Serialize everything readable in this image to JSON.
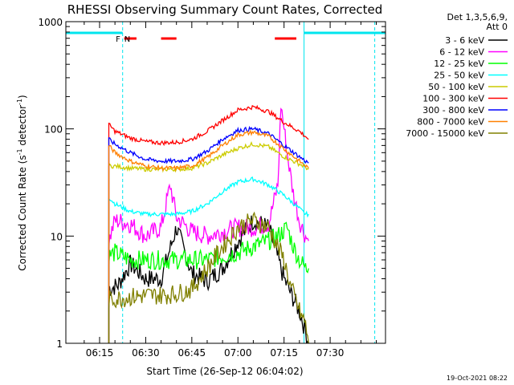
{
  "chart_data": {
    "type": "line",
    "title": "RHESSI Observing Summary Count Rates, Corrected",
    "xlabel": "Start Time (26-Sep-12 06:04:02)",
    "ylabel_main": "Corrected Count Rate (s",
    "ylabel_sup1": "-1",
    "ylabel_mid": " detector",
    "ylabel_sup2": "-1",
    "ylabel_end": ")",
    "x_ticks": [
      "06:15",
      "06:30",
      "06:45",
      "07:00",
      "07:15",
      "07:30"
    ],
    "x_tick_minutes": [
      15,
      30,
      45,
      60,
      75,
      90
    ],
    "xlim_minutes": [
      4.03,
      108
    ],
    "y_scale": "log",
    "ylim": [
      1,
      1000
    ],
    "y_ticks": [
      "1",
      "10",
      "100",
      "1000"
    ],
    "y_tick_values": [
      1,
      10,
      100,
      1000
    ],
    "legend_header": [
      "Det 1,3,5,6,9,",
      "Att 0"
    ],
    "legend_position": "top-right (outside plot)",
    "timestamp": "19-Oct-2021 08:22",
    "flags": {
      "eclipse_color": "#00e5ee",
      "eclipse_periods_minutes": [
        [
          4.03,
          22.5
        ],
        [
          81.5,
          108
        ]
      ],
      "boundary_minutes": [
        4.03,
        22.5,
        81.5,
        104.5
      ],
      "saa_periods_minutes": [
        [
          23.0,
          27.0
        ],
        [
          35.0,
          40.0
        ],
        [
          72.0,
          79.0
        ]
      ],
      "saa_color": "#ff0000",
      "flag_labels": [
        {
          "text": "F",
          "minute": 21.0,
          "color": "#ff0000"
        },
        {
          "text": "N",
          "minute": 24.0,
          "color": "#00e5ee"
        }
      ]
    },
    "series": [
      {
        "name": "3 - 6 keV",
        "color": "#000000",
        "t": [
          18,
          21,
          25,
          30,
          35,
          40,
          45,
          50,
          55,
          60,
          65,
          70,
          75,
          77,
          80,
          82,
          83
        ],
        "v": [
          3.2,
          3.5,
          5.5,
          4,
          4,
          12,
          4.5,
          3.8,
          5,
          9,
          14,
          12,
          4,
          3,
          2,
          1.3,
          1
        ]
      },
      {
        "name": "6 - 12 keV",
        "color": "#ff00ff",
        "t": [
          18,
          20,
          25,
          30,
          35,
          38,
          40,
          45,
          50,
          55,
          60,
          65,
          70,
          73,
          74,
          76,
          78,
          80,
          82,
          83
        ],
        "v": [
          9,
          14,
          13,
          10,
          12,
          30,
          15,
          11,
          10,
          11,
          12,
          12,
          13,
          30,
          170,
          60,
          25,
          14,
          10,
          9
        ]
      },
      {
        "name": "12 - 25 keV",
        "color": "#00ff00",
        "t": [
          18,
          20,
          25,
          30,
          35,
          40,
          45,
          50,
          55,
          60,
          65,
          70,
          73,
          76,
          78,
          80,
          82,
          83
        ],
        "v": [
          6.5,
          7,
          6,
          6,
          6,
          6,
          6,
          6,
          6.5,
          7,
          8,
          9,
          10,
          12,
          8,
          6,
          5,
          5
        ]
      },
      {
        "name": "25 - 50 keV",
        "color": "#00ffff",
        "t": [
          18,
          20,
          25,
          30,
          35,
          40,
          45,
          50,
          55,
          60,
          65,
          70,
          75,
          80,
          82,
          83
        ],
        "v": [
          23,
          20,
          17,
          16,
          16,
          16,
          17,
          20,
          26,
          32,
          34,
          30,
          24,
          18,
          16,
          16
        ]
      },
      {
        "name": "50 - 100 keV",
        "color": "#cccc00",
        "t": [
          18,
          20,
          25,
          30,
          35,
          40,
          45,
          50,
          55,
          60,
          65,
          70,
          75,
          80,
          82,
          83
        ],
        "v": [
          45,
          45,
          43,
          42,
          42,
          42,
          43,
          48,
          57,
          66,
          72,
          68,
          55,
          47,
          44,
          42
        ]
      },
      {
        "name": "100 - 300 keV",
        "color": "#ff0000",
        "t": [
          18,
          20,
          25,
          30,
          35,
          40,
          45,
          50,
          55,
          60,
          65,
          70,
          75,
          80,
          82,
          83
        ],
        "v": [
          110,
          95,
          82,
          76,
          74,
          75,
          80,
          95,
          120,
          150,
          160,
          145,
          115,
          95,
          85,
          80
        ]
      },
      {
        "name": "300 - 800 keV",
        "color": "#0000ff",
        "t": [
          18,
          20,
          25,
          30,
          35,
          40,
          45,
          50,
          55,
          60,
          65,
          70,
          75,
          80,
          82,
          83
        ],
        "v": [
          80,
          72,
          60,
          52,
          50,
          50,
          52,
          62,
          80,
          97,
          100,
          90,
          70,
          55,
          50,
          48
        ]
      },
      {
        "name": "800 - 7000 keV",
        "color": "#ff8000",
        "t": [
          18,
          20,
          25,
          30,
          35,
          40,
          45,
          50,
          55,
          60,
          65,
          70,
          75,
          80,
          82,
          83
        ],
        "v": [
          70,
          60,
          50,
          45,
          43,
          43,
          45,
          54,
          70,
          88,
          93,
          85,
          65,
          50,
          45,
          43
        ]
      },
      {
        "name": "7000 - 15000 keV",
        "color": "#808000",
        "t": [
          18,
          20,
          25,
          30,
          35,
          40,
          45,
          50,
          55,
          60,
          65,
          70,
          75,
          77,
          80,
          82,
          83
        ],
        "v": [
          2.5,
          2.6,
          2.7,
          2.8,
          2.8,
          2.9,
          3.2,
          5,
          8,
          12,
          14,
          12,
          6,
          3.5,
          2,
          1.5,
          1
        ]
      }
    ]
  }
}
